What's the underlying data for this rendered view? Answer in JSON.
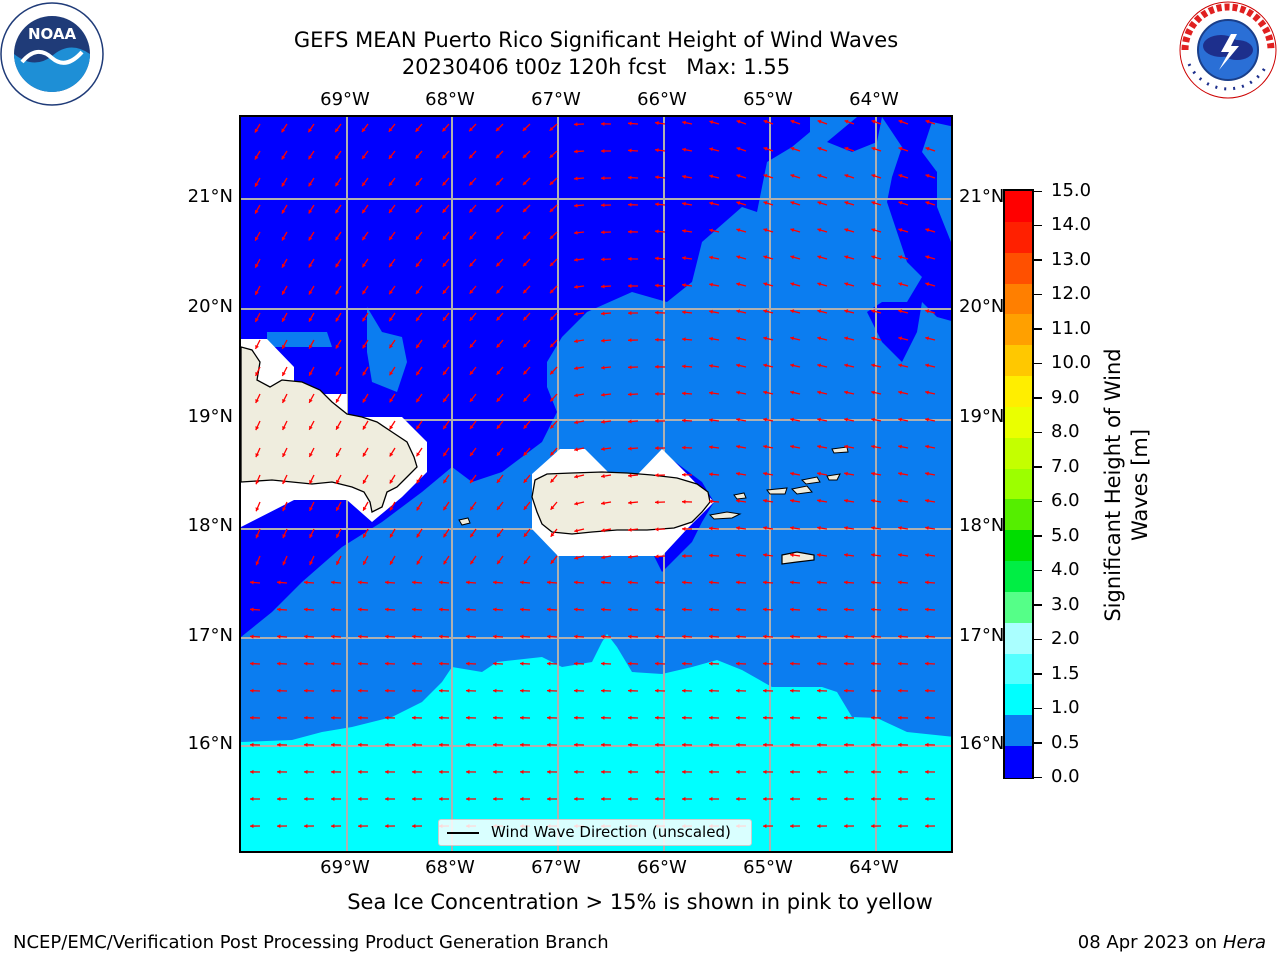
{
  "title_line1": "GEFS MEAN Puerto Rico Significant Height of Wind Waves",
  "title_line2": "20230406 t00z 120h fcst   Max: 1.55",
  "subtitle": "Sea Ice Concentration > 15% is shown in pink to yellow",
  "footer_left": "NCEP/EMC/Verification Post Processing Product Generation Branch",
  "footer_right_date": "08 Apr 2023 on ",
  "footer_right_host": "Hera",
  "legend_label": "Wind Wave Direction (unscaled)",
  "colorbar_label_line1": "Significant Height of Wind",
  "colorbar_label_line2": "Waves [m]",
  "noaa_logo": {
    "icon": "noaa-logo-icon",
    "text": "NOAA"
  },
  "nws_logo": {
    "icon": "nws-logo-icon"
  },
  "map": {
    "lon_labels": [
      "69°W",
      "68°W",
      "67°W",
      "66°W",
      "65°W",
      "64°W"
    ],
    "lat_labels": [
      "21°N",
      "20°N",
      "19°N",
      "18°N",
      "17°N",
      "16°N"
    ],
    "colors": {
      "level_0_0.5": "#0000ff",
      "level_0.5_1.0": "#0b7df0",
      "level_1.0_1.5": "#00ffff",
      "land": "#efedde",
      "arrow": "#ff0000",
      "grid": "#b0b0b0"
    }
  },
  "colorbar": {
    "ticks": [
      "15.0",
      "14.0",
      "13.0",
      "12.0",
      "11.0",
      "10.0",
      "9.0",
      "8.0",
      "7.0",
      "6.0",
      "5.0",
      "4.0",
      "3.0",
      "2.0",
      "1.5",
      "1.0",
      "0.5",
      "0.0"
    ],
    "colors": [
      "#ff0000",
      "#ff2000",
      "#ff5000",
      "#ff7f00",
      "#ffa000",
      "#ffc800",
      "#ffee00",
      "#eaff00",
      "#c4ff00",
      "#9cff00",
      "#55ee00",
      "#00dd00",
      "#00ee44",
      "#55ff88",
      "#aaffff",
      "#55ffff",
      "#00ffff",
      "#0b7df0",
      "#0000ff"
    ]
  }
}
